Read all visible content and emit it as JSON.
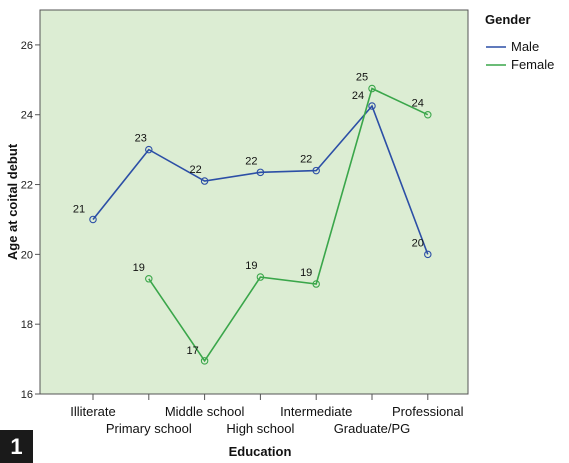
{
  "figure": {
    "panel_label": "1"
  },
  "chart_data": {
    "type": "line",
    "xlabel": "Education",
    "ylabel": "Age at coital debut",
    "categories": [
      "Illiterate",
      "Primary school",
      "Middle school",
      "High school",
      "Intermediate",
      "Graduate/PG",
      "Professional"
    ],
    "ylim": [
      16,
      27
    ],
    "yticks": [
      16,
      18,
      20,
      22,
      24,
      26
    ],
    "grid": false,
    "plot_background": "#dcedd3",
    "legend": {
      "title": "Gender",
      "position": "right"
    },
    "series": [
      {
        "name": "Male",
        "color": "#2c4fa6",
        "values": [
          21.0,
          23.0,
          22.1,
          22.35,
          22.4,
          24.25,
          20.0
        ],
        "labels": [
          "21",
          "23",
          "22",
          "22",
          "22",
          "24",
          "20"
        ]
      },
      {
        "name": "Female",
        "color": "#3aa64a",
        "values": [
          null,
          19.3,
          16.95,
          19.35,
          19.15,
          24.75,
          24.0
        ],
        "labels": [
          "",
          "19",
          "17",
          "19",
          "19",
          "25",
          "24"
        ]
      }
    ]
  }
}
